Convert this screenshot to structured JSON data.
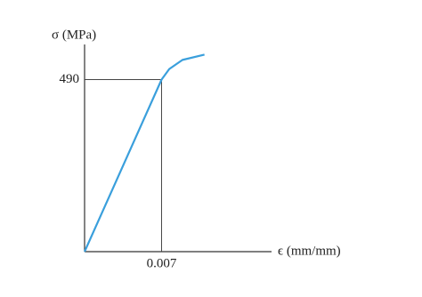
{
  "chart_data": {
    "type": "line",
    "y_label": "σ (MPa)",
    "x_label": "ϵ (mm/mm)",
    "x": [
      0,
      0.007,
      0.0077,
      0.0089,
      0.0109
    ],
    "series": [
      {
        "color": "#3a9fdc",
        "values": [
          0,
          490,
          520,
          546,
          561
        ]
      }
    ],
    "xlim": [
      0,
      0.017
    ],
    "ylim": [
      0,
      590
    ],
    "xticks": [
      0.007
    ],
    "yticks": [
      490
    ]
  }
}
